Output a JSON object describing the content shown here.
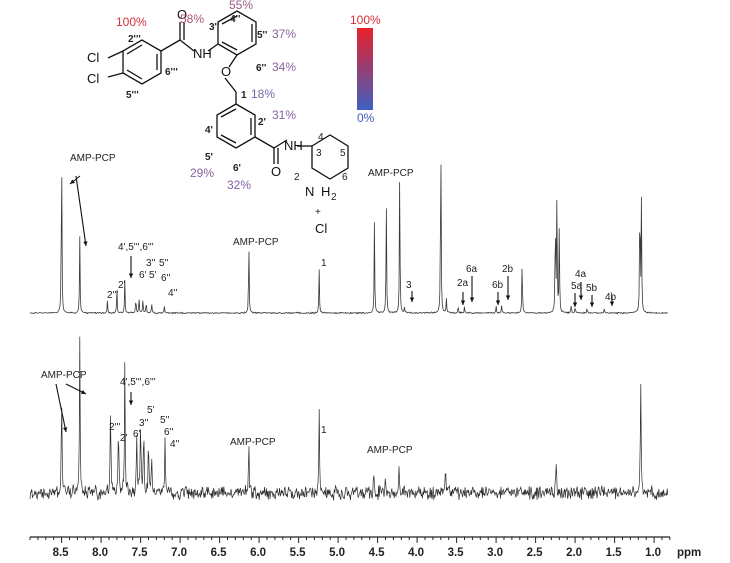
{
  "chart_data": {
    "type": "line",
    "xlabel": "ppm",
    "x_reversed": true,
    "xlim": [
      8.9,
      0.8
    ],
    "x_ticks": [
      "8.5",
      "8.0",
      "7.5",
      "7.0",
      "6.5",
      "6.0",
      "5.5",
      "5.0",
      "4.5",
      "4.0",
      "3.5",
      "3.0",
      "2.5",
      "2.0",
      "1.5",
      "1.0"
    ],
    "series": [
      {
        "peaks": [
          {
            "ppm": 8.5,
            "h": 0.76
          },
          {
            "ppm": 8.27,
            "h": 0.31
          },
          {
            "ppm": 7.92,
            "h": 0.05
          },
          {
            "ppm": 7.8,
            "h": 0.1
          },
          {
            "ppm": 7.7,
            "h": 0.13
          },
          {
            "ppm": 7.56,
            "h": 0.07
          },
          {
            "ppm": 7.52,
            "h": 0.07
          },
          {
            "ppm": 7.47,
            "h": 0.06
          },
          {
            "ppm": 7.43,
            "h": 0.05
          },
          {
            "ppm": 7.36,
            "h": 0.04
          },
          {
            "ppm": 7.2,
            "h": 0.03
          },
          {
            "ppm": 6.13,
            "h": 0.32
          },
          {
            "ppm": 5.24,
            "h": 0.18
          },
          {
            "ppm": 4.54,
            "h": 0.37
          },
          {
            "ppm": 4.39,
            "h": 0.47
          },
          {
            "ppm": 4.22,
            "h": 0.6
          },
          {
            "ppm": 4.16,
            "h": 0.02
          },
          {
            "ppm": 3.7,
            "h": 0.83
          },
          {
            "ppm": 3.63,
            "h": 0.06
          },
          {
            "ppm": 3.48,
            "h": 0.03
          },
          {
            "ppm": 3.4,
            "h": 0.03
          },
          {
            "ppm": 3.0,
            "h": 0.03
          },
          {
            "ppm": 2.93,
            "h": 0.03
          },
          {
            "ppm": 2.67,
            "h": 0.23
          },
          {
            "ppm": 2.25,
            "h": 0.44
          },
          {
            "ppm": 2.23,
            "h": 0.5
          },
          {
            "ppm": 2.2,
            "h": 0.36
          },
          {
            "ppm": 2.05,
            "h": 0.03
          },
          {
            "ppm": 2.0,
            "h": 0.03
          },
          {
            "ppm": 1.85,
            "h": 0.02
          },
          {
            "ppm": 1.63,
            "h": 0.02
          },
          {
            "ppm": 1.18,
            "h": 0.55
          },
          {
            "ppm": 1.16,
            "h": 0.46
          }
        ]
      },
      {
        "peaks": [
          {
            "ppm": 8.5,
            "h": 0.52
          },
          {
            "ppm": 8.27,
            "h": 0.76
          },
          {
            "ppm": 7.88,
            "h": 0.48
          },
          {
            "ppm": 7.78,
            "h": 0.39
          },
          {
            "ppm": 7.7,
            "h": 0.66
          },
          {
            "ppm": 7.55,
            "h": 0.34
          },
          {
            "ppm": 7.5,
            "h": 0.4
          },
          {
            "ppm": 7.46,
            "h": 0.34
          },
          {
            "ppm": 7.4,
            "h": 0.28
          },
          {
            "ppm": 7.36,
            "h": 0.22
          },
          {
            "ppm": 7.19,
            "h": 0.32
          },
          {
            "ppm": 6.13,
            "h": 0.28
          },
          {
            "ppm": 5.24,
            "h": 0.42
          },
          {
            "ppm": 4.55,
            "h": 0.12
          },
          {
            "ppm": 4.4,
            "h": 0.1
          },
          {
            "ppm": 4.23,
            "h": 0.14
          },
          {
            "ppm": 3.64,
            "h": 0.15
          },
          {
            "ppm": 2.24,
            "h": 0.18
          },
          {
            "ppm": 1.17,
            "h": 0.62
          }
        ]
      }
    ],
    "annotations": {
      "top": [
        {
          "text": "AMP-PCP",
          "ppm": 8.5
        },
        {
          "text": "AMP-PCP",
          "ppm": 6.13
        },
        {
          "text": "1",
          "ppm": 5.24
        },
        {
          "text": "AMP-PCP",
          "ppm": 4.22
        },
        {
          "text": "4',5''',6'''",
          "ppm": 7.7
        },
        {
          "text": "2'''",
          "ppm": 7.92
        },
        {
          "text": "2'",
          "ppm": 7.8
        },
        {
          "text": "6'",
          "ppm": 7.56
        },
        {
          "text": "3''",
          "ppm": 7.52
        },
        {
          "text": "5'",
          "ppm": 7.47
        },
        {
          "text": "5''",
          "ppm": 7.43
        },
        {
          "text": "6''",
          "ppm": 7.36
        },
        {
          "text": "4''",
          "ppm": 7.2
        },
        {
          "text": "3",
          "ppm": 4.16
        },
        {
          "text": "2a",
          "ppm": 3.48
        },
        {
          "text": "6a",
          "ppm": 3.4
        },
        {
          "text": "6b",
          "ppm": 3.0
        },
        {
          "text": "2b",
          "ppm": 2.93
        },
        {
          "text": "4a",
          "ppm": 2.0
        },
        {
          "text": "5a",
          "ppm": 2.05
        },
        {
          "text": "5b",
          "ppm": 1.85
        },
        {
          "text": "4b",
          "ppm": 1.63
        }
      ],
      "bottom": [
        {
          "text": "AMP-PCP",
          "ppm": 8.5
        },
        {
          "text": "4',5''',6'''",
          "ppm": 7.7
        },
        {
          "text": "2'''",
          "ppm": 7.88
        },
        {
          "text": "2'",
          "ppm": 7.78
        },
        {
          "text": "6'",
          "ppm": 7.55
        },
        {
          "text": "3''",
          "ppm": 7.5
        },
        {
          "text": "5'",
          "ppm": 7.46
        },
        {
          "text": "5''",
          "ppm": 7.4
        },
        {
          "text": "6''",
          "ppm": 7.36
        },
        {
          "text": "4''",
          "ppm": 7.19
        },
        {
          "text": "AMP-PCP",
          "ppm": 6.13
        },
        {
          "text": "1",
          "ppm": 5.24
        },
        {
          "text": "AMP-PCP",
          "ppm": 4.45
        }
      ]
    },
    "structure": {
      "atoms": [
        "Cl",
        "Cl",
        "O",
        "O",
        "NH",
        "O",
        "NH",
        "N",
        "H",
        "2",
        "+",
        "Cl"
      ],
      "position_labels": [
        "2'''",
        "6'''",
        "5'''",
        "3''",
        "4''",
        "5''",
        "6''",
        "1",
        "2'",
        "4'",
        "5'",
        "6'",
        "2",
        "3",
        "4",
        "5",
        "6"
      ],
      "epitope_percent": [
        {
          "text": "100%",
          "color": "#d63038"
        },
        {
          "text": "58%",
          "color": "#b0546e"
        },
        {
          "text": "55%",
          "color": "#9a5a86"
        },
        {
          "text": "37%",
          "color": "#8a5f9a"
        },
        {
          "text": "34%",
          "color": "#8a62a0"
        },
        {
          "text": "18%",
          "color": "#7866ac"
        },
        {
          "text": "31%",
          "color": "#8462a2"
        },
        {
          "text": "29%",
          "color": "#8462a2"
        },
        {
          "text": "32%",
          "color": "#8462a2"
        }
      ]
    },
    "colorbar": {
      "max_label": "100%",
      "min_label": "0%",
      "max_color": "#e8202a",
      "min_color": "#4060c0"
    }
  }
}
